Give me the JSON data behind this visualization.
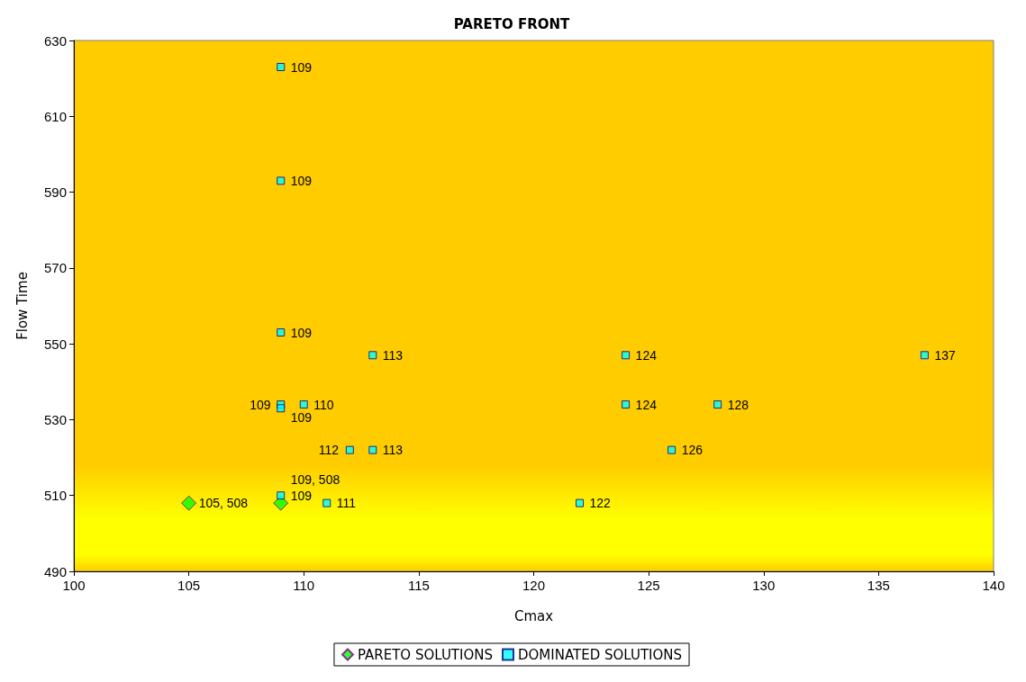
{
  "chart_data": {
    "type": "scatter",
    "title": "PARETO FRONT",
    "xlabel": "Cmax",
    "ylabel": "Flow Time",
    "xlim": [
      100,
      140
    ],
    "xticks": [
      100,
      105,
      110,
      115,
      120,
      125,
      130,
      135,
      140
    ],
    "ylim": [
      490,
      630
    ],
    "yticks": [
      490,
      510,
      530,
      550,
      570,
      590,
      610,
      630
    ],
    "grid": false,
    "legend": "bottom",
    "series": [
      {
        "name": "PARETO SOLUTIONS",
        "color": "#00ff00",
        "marker": "diamond",
        "x": [
          105,
          109
        ],
        "values": [
          508,
          508
        ]
      },
      {
        "name": "DOMINATED SOLUTIONS",
        "color": "#00ffff",
        "marker": "square",
        "x": [
          109,
          109,
          109,
          113,
          124,
          137,
          109,
          109,
          110,
          124,
          128,
          112,
          113,
          126,
          109,
          111,
          122
        ],
        "values": [
          623,
          593,
          553,
          547,
          547,
          547,
          534,
          533,
          534,
          534,
          534,
          522,
          522,
          522,
          510,
          508,
          508
        ]
      }
    ],
    "annotations": [
      {
        "text": "105, 508",
        "x": 105,
        "y": 508
      },
      {
        "text": "109, 508",
        "x": 109,
        "y": 508
      },
      {
        "text": "109",
        "x": 109,
        "y": 623
      },
      {
        "text": "109",
        "x": 109,
        "y": 593
      },
      {
        "text": "109",
        "x": 109,
        "y": 553
      },
      {
        "text": "113",
        "x": 113,
        "y": 547
      },
      {
        "text": "124",
        "x": 124,
        "y": 547
      },
      {
        "text": "137",
        "x": 137,
        "y": 547
      },
      {
        "text": "109",
        "x": 109,
        "y": 534
      },
      {
        "text": "109",
        "x": 109,
        "y": 533
      },
      {
        "text": "110",
        "x": 110,
        "y": 534
      },
      {
        "text": "124",
        "x": 124,
        "y": 534
      },
      {
        "text": "128",
        "x": 128,
        "y": 534
      },
      {
        "text": "112",
        "x": 112,
        "y": 522
      },
      {
        "text": "113",
        "x": 113,
        "y": 522
      },
      {
        "text": "126",
        "x": 126,
        "y": 522
      },
      {
        "text": "109",
        "x": 109,
        "y": 510
      },
      {
        "text": "111",
        "x": 111,
        "y": 508
      },
      {
        "text": "122",
        "x": 122,
        "y": 508
      }
    ]
  }
}
